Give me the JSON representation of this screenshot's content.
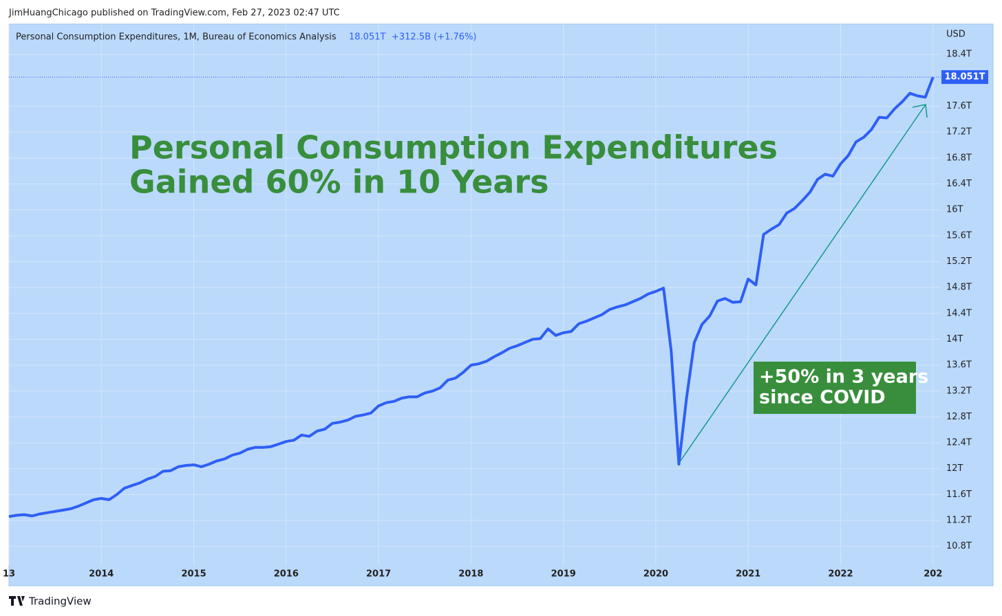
{
  "chart_data": {
    "type": "line",
    "attribution": "JimHuangChicago published on TradingView.com, Feb 27, 2023 02:47 UTC",
    "brand": "TradingView",
    "currency": "USD",
    "title_lines": [
      "Personal Consumption Expenditures",
      "Gained 60% in 10 Years"
    ],
    "callout_lines": [
      "+50% in 3 years",
      "since COVID"
    ],
    "change_label": "+312.5B (+1.76%)",
    "x": [
      "2013-01",
      "2013-02",
      "2013-03",
      "2013-04",
      "2013-05",
      "2013-06",
      "2013-07",
      "2013-08",
      "2013-09",
      "2013-10",
      "2013-11",
      "2013-12",
      "2014-01",
      "2014-02",
      "2014-03",
      "2014-04",
      "2014-05",
      "2014-06",
      "2014-07",
      "2014-08",
      "2014-09",
      "2014-10",
      "2014-11",
      "2014-12",
      "2015-01",
      "2015-02",
      "2015-03",
      "2015-04",
      "2015-05",
      "2015-06",
      "2015-07",
      "2015-08",
      "2015-09",
      "2015-10",
      "2015-11",
      "2015-12",
      "2016-01",
      "2016-02",
      "2016-03",
      "2016-04",
      "2016-05",
      "2016-06",
      "2016-07",
      "2016-08",
      "2016-09",
      "2016-10",
      "2016-11",
      "2016-12",
      "2017-01",
      "2017-02",
      "2017-03",
      "2017-04",
      "2017-05",
      "2017-06",
      "2017-07",
      "2017-08",
      "2017-09",
      "2017-10",
      "2017-11",
      "2017-12",
      "2018-01",
      "2018-02",
      "2018-03",
      "2018-04",
      "2018-05",
      "2018-06",
      "2018-07",
      "2018-08",
      "2018-09",
      "2018-10",
      "2018-11",
      "2018-12",
      "2019-01",
      "2019-02",
      "2019-03",
      "2019-04",
      "2019-05",
      "2019-06",
      "2019-07",
      "2019-08",
      "2019-09",
      "2019-10",
      "2019-11",
      "2019-12",
      "2020-01",
      "2020-02",
      "2020-03",
      "2020-04",
      "2020-05",
      "2020-06",
      "2020-07",
      "2020-08",
      "2020-09",
      "2020-10",
      "2020-11",
      "2020-12",
      "2021-01",
      "2021-02",
      "2021-03",
      "2021-04",
      "2021-05",
      "2021-06",
      "2021-07",
      "2021-08",
      "2021-09",
      "2021-10",
      "2021-11",
      "2021-12",
      "2022-01",
      "2022-02",
      "2022-03",
      "2022-04",
      "2022-05",
      "2022-06",
      "2022-07",
      "2022-08",
      "2022-09",
      "2022-10",
      "2022-11",
      "2022-12",
      "2023-01"
    ],
    "series": [
      {
        "name": "Personal Consumption Expenditures, 1M, Bureau of Economics Analysis",
        "color": "#2e5ff5",
        "last_value_label": "18.051T",
        "values": [
          11.26,
          11.28,
          11.29,
          11.27,
          11.3,
          11.32,
          11.34,
          11.36,
          11.38,
          11.42,
          11.47,
          11.52,
          11.54,
          11.52,
          11.6,
          11.7,
          11.74,
          11.78,
          11.84,
          11.88,
          11.96,
          11.97,
          12.03,
          12.05,
          12.06,
          12.03,
          12.07,
          12.12,
          12.15,
          12.21,
          12.24,
          12.3,
          12.33,
          12.33,
          12.34,
          12.38,
          12.42,
          12.44,
          12.52,
          12.5,
          12.58,
          12.61,
          12.7,
          12.72,
          12.75,
          12.81,
          12.83,
          12.86,
          12.97,
          13.02,
          13.04,
          13.09,
          13.11,
          13.11,
          13.17,
          13.2,
          13.25,
          13.37,
          13.4,
          13.49,
          13.6,
          13.62,
          13.66,
          13.73,
          13.79,
          13.86,
          13.9,
          13.95,
          14.0,
          14.01,
          14.16,
          14.06,
          14.1,
          14.12,
          14.24,
          14.28,
          14.33,
          14.38,
          14.46,
          14.5,
          14.53,
          14.58,
          14.63,
          14.7,
          14.74,
          14.79,
          13.82,
          12.07,
          13.1,
          13.95,
          14.23,
          14.36,
          14.59,
          14.63,
          14.57,
          14.58,
          14.93,
          14.84,
          15.62,
          15.7,
          15.77,
          15.95,
          16.02,
          16.14,
          16.27,
          16.47,
          16.55,
          16.52,
          16.71,
          16.84,
          17.05,
          17.12,
          17.24,
          17.43,
          17.42,
          17.56,
          17.67,
          17.8,
          17.76,
          17.74,
          18.051
        ]
      }
    ],
    "xlim": [
      "2013-01",
      "2023-02"
    ],
    "xticks": [
      {
        "value": "2013-01",
        "label": "13"
      },
      {
        "value": "2014-01",
        "label": "2014"
      },
      {
        "value": "2015-01",
        "label": "2015"
      },
      {
        "value": "2016-01",
        "label": "2016"
      },
      {
        "value": "2017-01",
        "label": "2017"
      },
      {
        "value": "2018-01",
        "label": "2018"
      },
      {
        "value": "2019-01",
        "label": "2019"
      },
      {
        "value": "2020-01",
        "label": "2020"
      },
      {
        "value": "2021-01",
        "label": "2021"
      },
      {
        "value": "2022-01",
        "label": "2022"
      },
      {
        "value": "2023-01",
        "label": "202"
      }
    ],
    "ylim": [
      10.51,
      18.87
    ],
    "yticks": [
      {
        "value": 10.8,
        "label": "10.8T"
      },
      {
        "value": 11.2,
        "label": "11.2T"
      },
      {
        "value": 11.6,
        "label": "11.6T"
      },
      {
        "value": 12,
        "label": "12T"
      },
      {
        "value": 12.4,
        "label": "12.4T"
      },
      {
        "value": 12.8,
        "label": "12.8T"
      },
      {
        "value": 13.2,
        "label": "13.2T"
      },
      {
        "value": 13.6,
        "label": "13.6T"
      },
      {
        "value": 14,
        "label": "14T"
      },
      {
        "value": 14.4,
        "label": "14.4T"
      },
      {
        "value": 14.8,
        "label": "14.8T"
      },
      {
        "value": 15.2,
        "label": "15.2T"
      },
      {
        "value": 15.6,
        "label": "15.6T"
      },
      {
        "value": 16,
        "label": "16T"
      },
      {
        "value": 16.4,
        "label": "16.4T"
      },
      {
        "value": 16.8,
        "label": "16.8T"
      },
      {
        "value": 17.2,
        "label": "17.2T"
      },
      {
        "value": 17.6,
        "label": "17.6T"
      },
      {
        "value": 18.4,
        "label": "18.4T"
      }
    ],
    "grid": true
  }
}
